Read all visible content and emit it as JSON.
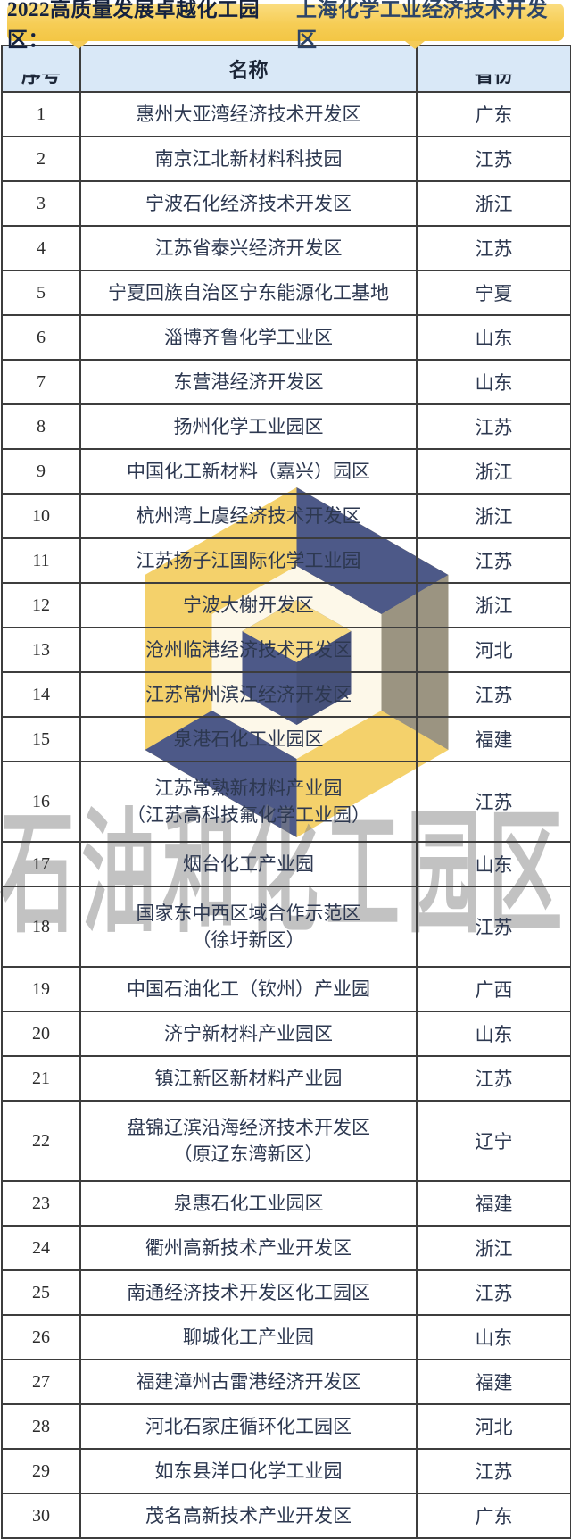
{
  "banner": {
    "prefix": "2022高质量发展卓越化工园区：",
    "highlight": "上海化学工业经济技术开发区"
  },
  "table": {
    "columns": [
      "序号",
      "名称",
      "省份"
    ],
    "rows": [
      {
        "no": "1",
        "name": "惠州大亚湾经济技术开发区",
        "province": "广东"
      },
      {
        "no": "2",
        "name": "南京江北新材料科技园",
        "province": "江苏"
      },
      {
        "no": "3",
        "name": "宁波石化经济技术开发区",
        "province": "浙江"
      },
      {
        "no": "4",
        "name": "江苏省泰兴经济开发区",
        "province": "江苏"
      },
      {
        "no": "5",
        "name": "宁夏回族自治区宁东能源化工基地",
        "province": "宁夏"
      },
      {
        "no": "6",
        "name": "淄博齐鲁化学工业区",
        "province": "山东"
      },
      {
        "no": "7",
        "name": "东营港经济开发区",
        "province": "山东"
      },
      {
        "no": "8",
        "name": "扬州化学工业园区",
        "province": "江苏"
      },
      {
        "no": "9",
        "name": "中国化工新材料（嘉兴）园区",
        "province": "浙江"
      },
      {
        "no": "10",
        "name": "杭州湾上虞经济技术开发区",
        "province": "浙江"
      },
      {
        "no": "11",
        "name": "江苏扬子江国际化学工业园",
        "province": "江苏"
      },
      {
        "no": "12",
        "name": "宁波大榭开发区",
        "province": "浙江"
      },
      {
        "no": "13",
        "name": "沧州临港经济技术开发区",
        "province": "河北"
      },
      {
        "no": "14",
        "name": "江苏常州滨江经济开发区",
        "province": "江苏"
      },
      {
        "no": "15",
        "name": "泉港石化工业园区",
        "province": "福建"
      },
      {
        "no": "16",
        "name": "江苏常熟新材料产业园",
        "name2": "（江苏高科技氟化学工业园）",
        "province": "江苏"
      },
      {
        "no": "17",
        "name": "烟台化工产业园",
        "province": "山东"
      },
      {
        "no": "18",
        "name": "国家东中西区域合作示范区",
        "name2": "（徐圩新区）",
        "province": "江苏"
      },
      {
        "no": "19",
        "name": "中国石油化工（钦州）产业园",
        "province": "广西"
      },
      {
        "no": "20",
        "name": "济宁新材料产业园区",
        "province": "山东"
      },
      {
        "no": "21",
        "name": "镇江新区新材料产业园",
        "province": "江苏"
      },
      {
        "no": "22",
        "name": "盘锦辽滨沿海经济技术开发区",
        "name2": "（原辽东湾新区）",
        "province": "辽宁"
      },
      {
        "no": "23",
        "name": "泉惠石化工业园区",
        "province": "福建"
      },
      {
        "no": "24",
        "name": "衢州高新技术产业开发区",
        "province": "浙江"
      },
      {
        "no": "25",
        "name": "南通经济技术开发区化工园区",
        "province": "江苏"
      },
      {
        "no": "26",
        "name": "聊城化工产业园",
        "province": "山东"
      },
      {
        "no": "27",
        "name": "福建漳州古雷港经济开发区",
        "province": "福建"
      },
      {
        "no": "28",
        "name": "河北石家庄循环化工园区",
        "province": "河北"
      },
      {
        "no": "29",
        "name": "如东县洋口化学工业园",
        "province": "江苏"
      },
      {
        "no": "30",
        "name": "茂名高新技术产业开发区",
        "province": "广东"
      }
    ]
  },
  "watermarks": {
    "text": "石油和化工园区"
  },
  "colors": {
    "banner_yellow": "#f6cd55",
    "banner_text": "#15223f",
    "header_blue": "#d9e8f7",
    "border": "#3d3d3d",
    "cell_text": "#2d3850",
    "logo_navy": "#27356e",
    "logo_yellow": "#f2c84b",
    "watermark_gray": "#878787"
  }
}
